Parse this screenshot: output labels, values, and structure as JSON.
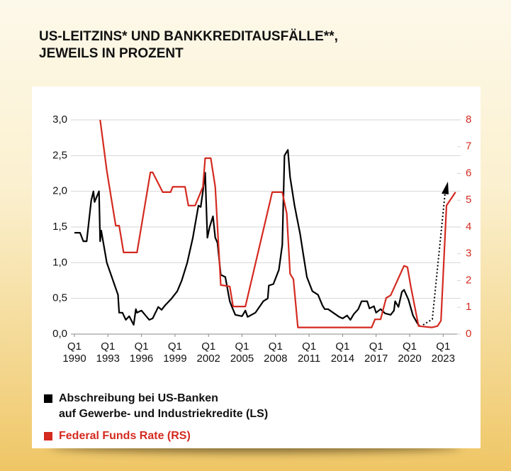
{
  "chart_data": {
    "type": "line",
    "title": "US-LEITZINS* UND BANKKREDITAUSFÄLLE**,\nJEWEILS IN PROZENT",
    "xlim": [
      1990,
      2025.2
    ],
    "xticks": [
      {
        "value": 1990,
        "label": "Q1\n1990"
      },
      {
        "value": 1993,
        "label": "Q1\n1993"
      },
      {
        "value": 1996,
        "label": "Q1\n1996"
      },
      {
        "value": 1999,
        "label": "Q1\n1999"
      },
      {
        "value": 2002,
        "label": "Q1\n2002"
      },
      {
        "value": 2005,
        "label": "Q1\n2005"
      },
      {
        "value": 2008,
        "label": "Q1\n2008"
      },
      {
        "value": 2011,
        "label": "Q1\n2011"
      },
      {
        "value": 2014,
        "label": "Q1\n2014"
      },
      {
        "value": 2017,
        "label": "Q1\n2017"
      },
      {
        "value": 2020,
        "label": "Q1\n2020"
      },
      {
        "value": 2023,
        "label": "Q1\n2023"
      }
    ],
    "ylim": [
      0,
      3
    ],
    "yticks": [
      {
        "value": 0,
        "label": "0,0"
      },
      {
        "value": 0.5,
        "label": "0,5"
      },
      {
        "value": 1,
        "label": "1,0"
      },
      {
        "value": 1.5,
        "label": "1,5"
      },
      {
        "value": 2,
        "label": "2,0"
      },
      {
        "value": 2.5,
        "label": "2,5"
      },
      {
        "value": 3,
        "label": "3,0"
      }
    ],
    "y2lim": [
      0,
      8
    ],
    "y2ticks": [
      0,
      1,
      2,
      3,
      4,
      5,
      6,
      7,
      8
    ],
    "grid": true,
    "series": [
      {
        "name": "Abschreibung bei US-Banken\nauf Gewerbe- und Industriekredite (LS)",
        "color": "#000000",
        "x": [
          1990.0,
          1990.5,
          1990.8,
          1991.1,
          1991.5,
          1991.7,
          1991.8,
          1992.2,
          1992.3,
          1992.4,
          1992.9,
          1993.9,
          1994.0,
          1994.3,
          1994.6,
          1994.9,
          1995.3,
          1995.5,
          1995.6,
          1996.0,
          1996.7,
          1997.0,
          1997.5,
          1997.8,
          1998.1,
          1998.7,
          1999.2,
          1999.6,
          2000.1,
          2000.6,
          2001.1,
          2001.3,
          2001.5,
          2001.7,
          2001.9,
          2002.1,
          2002.4,
          2002.6,
          2002.8,
          2003.1,
          2003.5,
          2003.9,
          2004.1,
          2004.4,
          2005.0,
          2005.3,
          2005.5,
          2006.2,
          2006.9,
          2007.3,
          2007.4,
          2007.8,
          2008.3,
          2008.6,
          2008.8,
          2009.1,
          2009.3,
          2009.7,
          2010.2,
          2010.5,
          2010.8,
          2011.3,
          2011.8,
          2012.2,
          2012.4,
          2012.7,
          2013.7,
          2014.0,
          2014.4,
          2014.7,
          2015.0,
          2015.4,
          2015.7,
          2016.2,
          2016.4,
          2016.8,
          2017.0,
          2017.4,
          2017.8,
          2018.3,
          2018.6,
          2018.7,
          2019.0,
          2019.3,
          2019.5,
          2019.9,
          2020.3,
          2020.7,
          2020.9
        ],
        "values": [
          1.42,
          1.42,
          1.3,
          1.3,
          1.87,
          2.0,
          1.85,
          2.0,
          1.3,
          1.45,
          1.0,
          0.55,
          0.3,
          0.3,
          0.2,
          0.25,
          0.13,
          0.35,
          0.3,
          0.33,
          0.2,
          0.22,
          0.38,
          0.34,
          0.4,
          0.5,
          0.6,
          0.75,
          1.0,
          1.35,
          1.8,
          1.78,
          2.0,
          2.26,
          1.35,
          1.5,
          1.65,
          1.35,
          1.28,
          0.83,
          0.8,
          0.46,
          0.38,
          0.27,
          0.25,
          0.33,
          0.24,
          0.3,
          0.46,
          0.5,
          0.68,
          0.7,
          0.9,
          1.25,
          2.5,
          2.58,
          2.2,
          1.8,
          1.4,
          1.1,
          0.8,
          0.6,
          0.55,
          0.4,
          0.35,
          0.35,
          0.24,
          0.22,
          0.26,
          0.2,
          0.28,
          0.35,
          0.46,
          0.46,
          0.36,
          0.39,
          0.3,
          0.35,
          0.29,
          0.27,
          0.33,
          0.46,
          0.38,
          0.59,
          0.62,
          0.48,
          0.26,
          0.15,
          0.11
        ]
      },
      {
        "name": "Federal Funds Rate (RS)",
        "color": "#d42a20",
        "axis": "y2",
        "x": [
          1992.3,
          1992.9,
          1993.7,
          1994.0,
          1994.4,
          1995.6,
          1996.8,
          1997.0,
          1997.9,
          1998.6,
          1998.8,
          1999.9,
          2000.2,
          2000.8,
          2001.5,
          2001.7,
          2002.2,
          2002.6,
          2003.1,
          2003.9,
          2004.2,
          2005.3,
          2007.7,
          2008.6,
          2009.0,
          2009.3,
          2009.6,
          2010.0,
          2016.6,
          2016.9,
          2017.4,
          2017.9,
          2018.3,
          2019.5,
          2019.8,
          2020.1,
          2020.8,
          2022.0,
          2022.5,
          2022.8,
          2023.3,
          2024.1
        ],
        "values": [
          8.0,
          6.1,
          4.05,
          4.05,
          3.05,
          3.05,
          6.04,
          6.04,
          5.3,
          5.3,
          5.5,
          5.5,
          4.8,
          4.8,
          5.5,
          6.57,
          6.57,
          5.5,
          1.83,
          1.78,
          1.03,
          1.03,
          5.3,
          5.3,
          4.5,
          2.25,
          2.05,
          0.25,
          0.25,
          0.55,
          0.55,
          1.35,
          1.45,
          2.55,
          2.5,
          1.78,
          0.3,
          0.25,
          0.3,
          0.5,
          4.8,
          5.3
        ]
      }
    ]
  }
}
